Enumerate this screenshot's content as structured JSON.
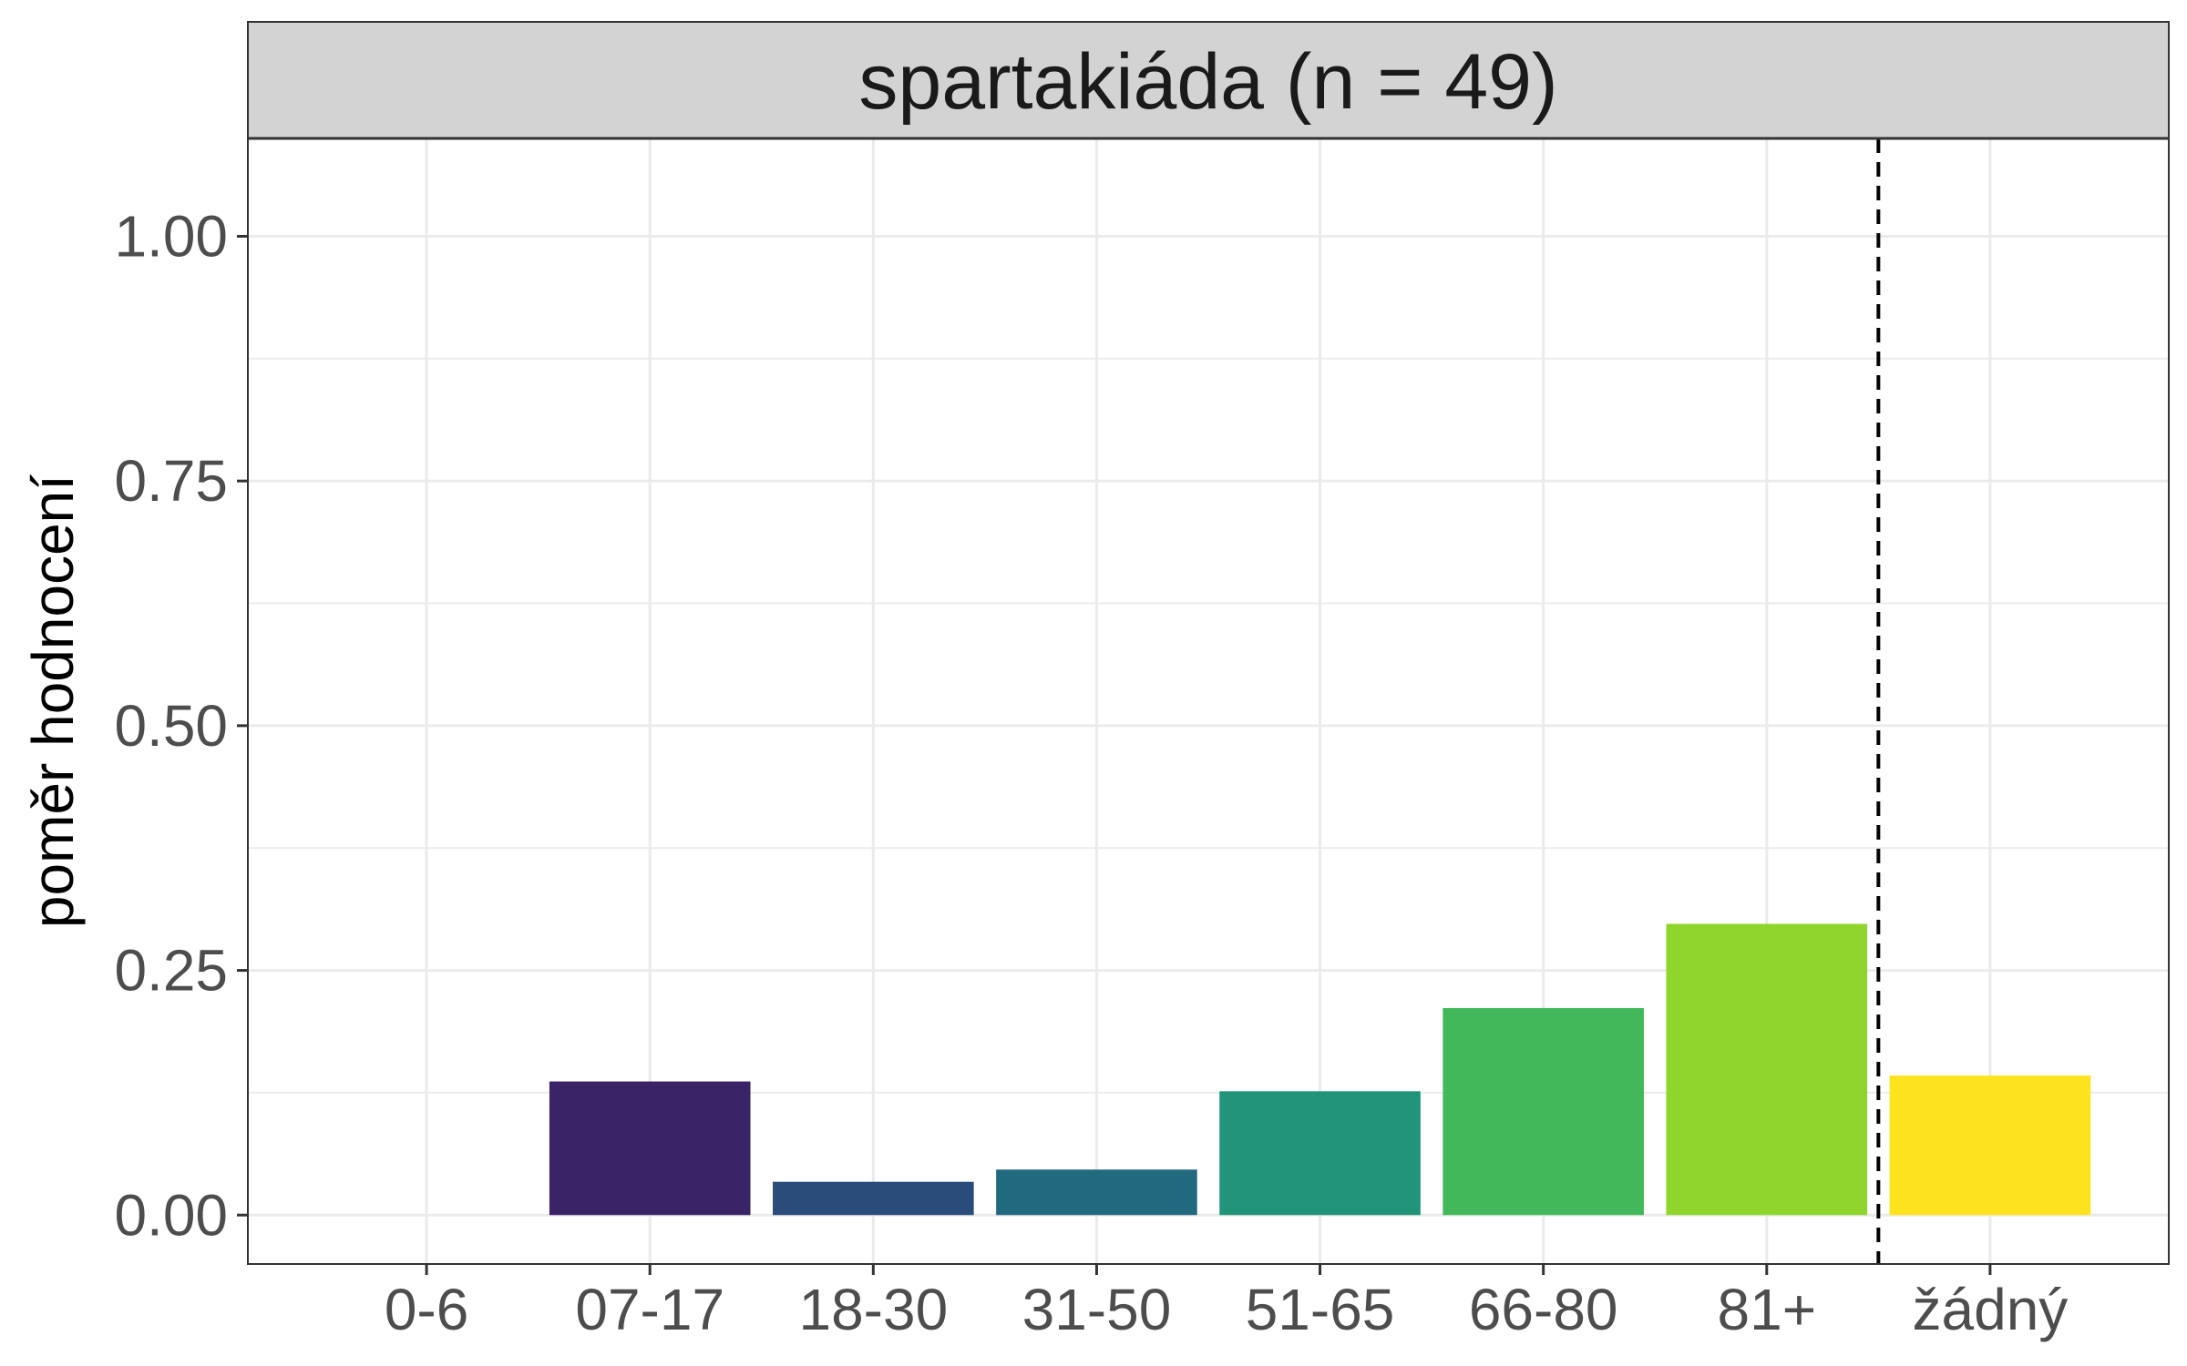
{
  "chart_data": {
    "type": "bar",
    "facet_title": "spartakiáda (n = 49)",
    "xlabel": "",
    "ylabel": "poměr hodnocení",
    "categories": [
      "0-6",
      "07-17",
      "18-30",
      "31-50",
      "51-65",
      "66-80",
      "81+",
      "žádný"
    ],
    "values": [
      0.0,
      0.1365,
      0.034,
      0.0465,
      0.1265,
      0.2115,
      0.2975,
      0.1425
    ],
    "colors": [
      "#440154",
      "#3b2367",
      "#2a4c7a",
      "#216a7e",
      "#22947a",
      "#42b85a",
      "#90d52e",
      "#fde31d"
    ],
    "ylim": [
      -0.05,
      1.1
    ],
    "yticks": [
      0.0,
      0.25,
      0.5,
      0.75,
      1.0
    ],
    "ytick_labels": [
      "0.00",
      "0.25",
      "0.50",
      "0.75",
      "1.00"
    ],
    "vline_after_category": "81+",
    "vline_style": "dashed",
    "grid": true,
    "strip_color": "#d3d3d3"
  }
}
